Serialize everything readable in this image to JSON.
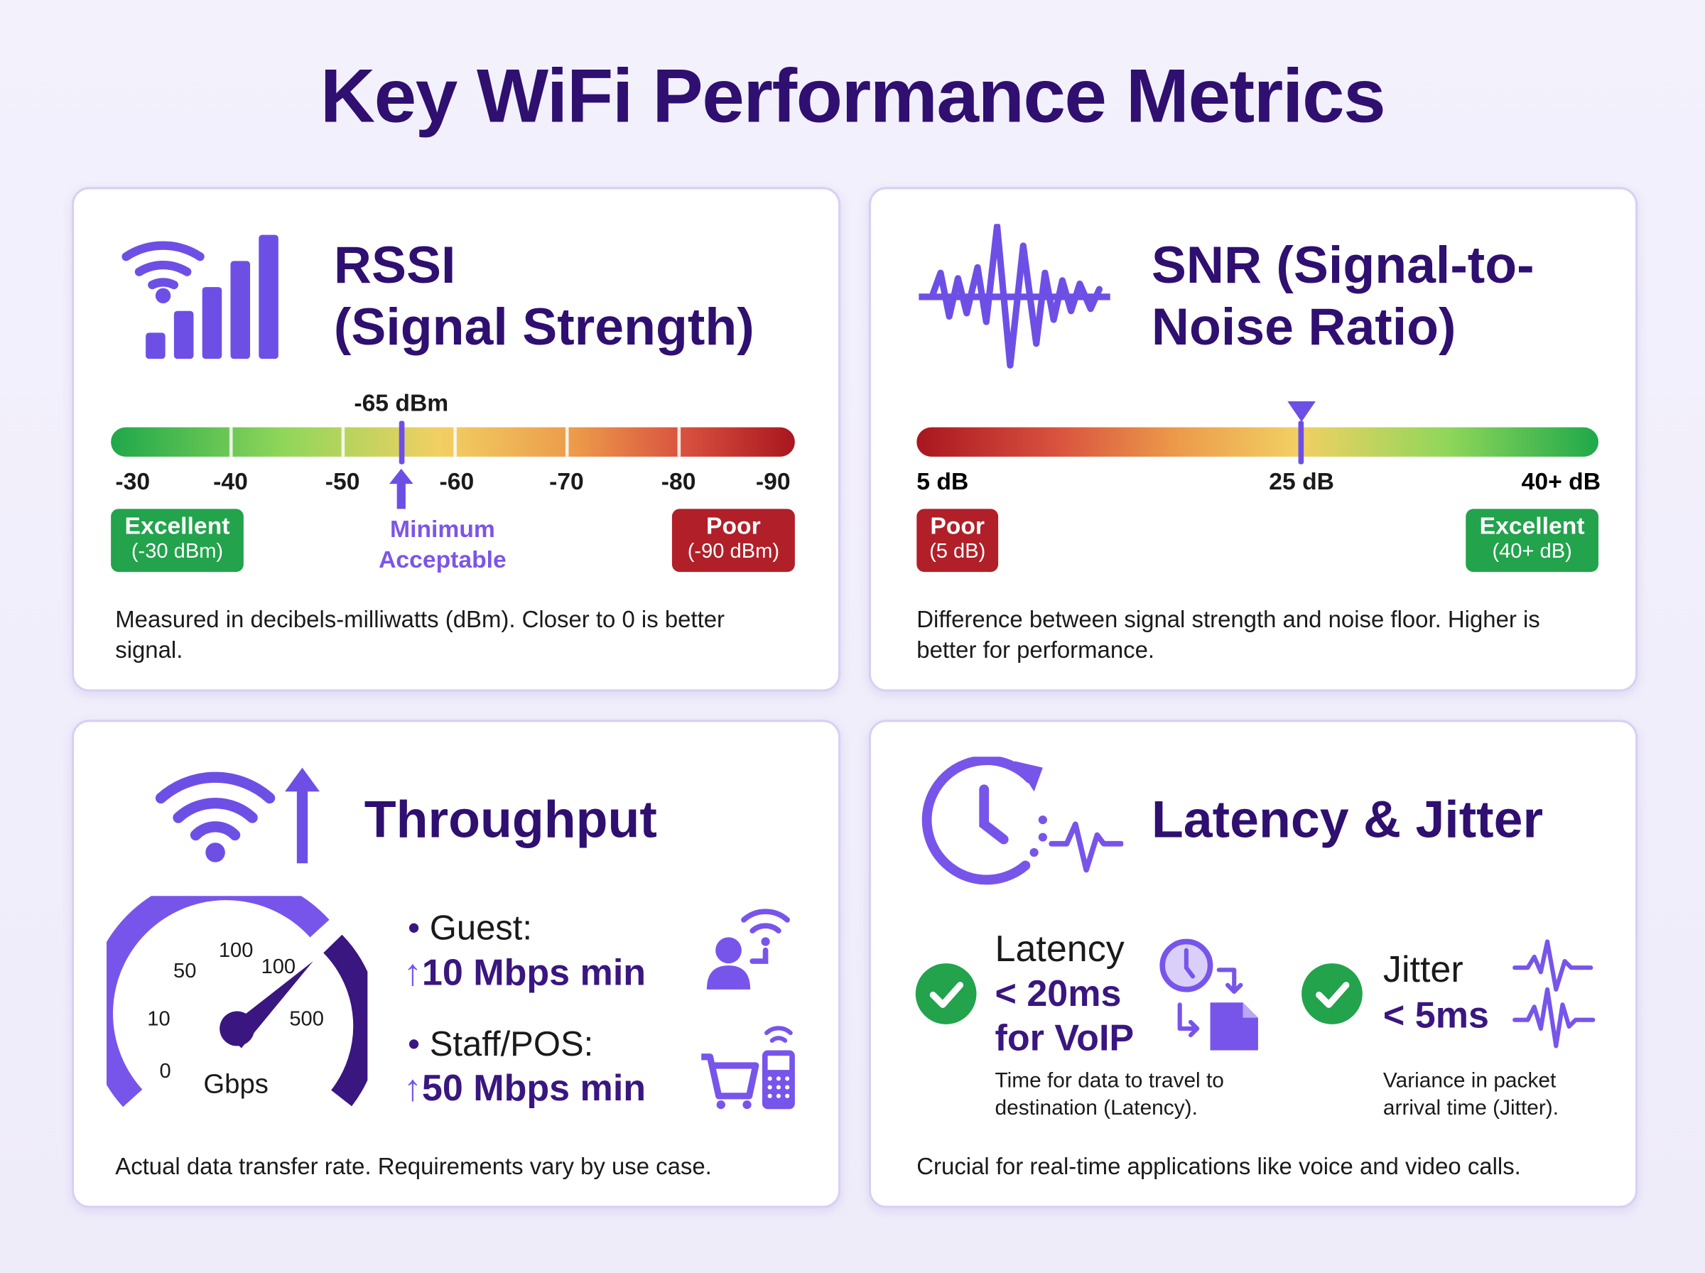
{
  "title": "Key WiFi Performance Metrics",
  "colors": {
    "title": "#2f0f70",
    "accent": "#6e4fe6",
    "accent_dark": "#3a1680",
    "good": "#22a34c",
    "bad": "#b11f28",
    "warn": "#f2d063"
  },
  "rssi": {
    "title_line1": "RSSI",
    "title_line2": "(Signal Strength)",
    "marker_label": "-65 dBm",
    "marker_value": -65,
    "scale": [
      "-30",
      "-40",
      "-50",
      "-60",
      "-70",
      "-80",
      "-90"
    ],
    "good_badge": {
      "label": "Excellent",
      "value": "(-30 dBm)"
    },
    "bad_badge": {
      "label": "Poor",
      "value": "(-90 dBm)"
    },
    "min_line1": "Minimum",
    "min_line2": "Acceptable",
    "description": "Measured in decibels-milliwatts (dBm). Closer to 0 is better signal."
  },
  "snr": {
    "title_line1": "SNR (Signal-to-",
    "title_line2": "Noise Ratio)",
    "marker_value": 25,
    "scale": [
      "5 dB",
      "25 dB",
      "40+ dB"
    ],
    "bad_badge": {
      "label": "Poor",
      "value": "(5 dB)"
    },
    "good_badge": {
      "label": "Excellent",
      "value": "(40+ dB)"
    },
    "description": "Difference between signal strength and noise floor. Higher is better for performance."
  },
  "throughput": {
    "title": "Throughput",
    "gauge_labels": [
      "0",
      "10",
      "50",
      "100",
      "100",
      "500"
    ],
    "gauge_unit": "Gbps",
    "guest_label": "Guest:",
    "guest_value": "10 Mbps min",
    "staff_label": "Staff/POS:",
    "staff_value": "50 Mbps min",
    "description": "Actual data transfer rate. Requirements vary by use case."
  },
  "latency": {
    "title": "Latency & Jitter",
    "latency_label": "Latency",
    "latency_value": "< 20ms",
    "latency_value2": "for VoIP",
    "latency_desc": "Time for data to travel to destination (Latency).",
    "jitter_label": "Jitter",
    "jitter_value": "< 5ms",
    "jitter_desc": "Variance in packet arrival time (Jitter).",
    "description": "Crucial for real-time applications like voice and video calls."
  }
}
